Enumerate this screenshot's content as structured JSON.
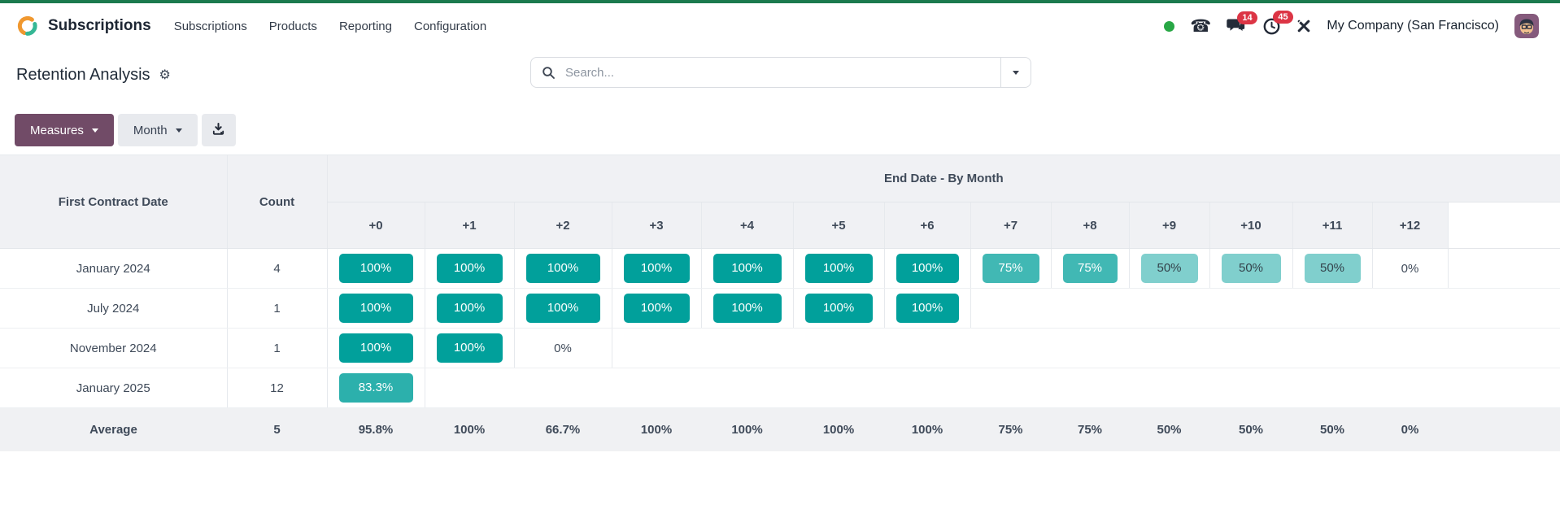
{
  "colors": {
    "accent_teal": "#00a09b",
    "primary_plum": "#714B67",
    "badge_red": "#dc3545",
    "presence_green": "#28a745",
    "top_strip_green": "#1c7a4e"
  },
  "icons": {
    "gear": "⚙",
    "phone": "☎"
  },
  "nav": {
    "brand": "Subscriptions",
    "menu": [
      {
        "label": "Subscriptions"
      },
      {
        "label": "Products"
      },
      {
        "label": "Reporting"
      },
      {
        "label": "Configuration"
      }
    ],
    "messages_badge": "14",
    "activities_badge": "45",
    "company": "My Company (San Francisco)"
  },
  "page": {
    "title": "Retention Analysis"
  },
  "search": {
    "placeholder": "Search...",
    "value": ""
  },
  "toolbar": {
    "measures": "Measures",
    "interval": "Month"
  },
  "table": {
    "row_header": "First Contract Date",
    "count_header": "Count",
    "group_header": "End Date - By Month",
    "periods": [
      "+0",
      "+1",
      "+2",
      "+3",
      "+4",
      "+5",
      "+6",
      "+7",
      "+8",
      "+9",
      "+10",
      "+11",
      "+12"
    ],
    "rows": [
      {
        "label": "January 2024",
        "count": "4",
        "cells": [
          100,
          100,
          100,
          100,
          100,
          100,
          100,
          75,
          75,
          50,
          50,
          50,
          0
        ]
      },
      {
        "label": "July 2024",
        "count": "1",
        "cells": [
          100,
          100,
          100,
          100,
          100,
          100,
          100,
          null,
          null,
          null,
          null,
          null,
          null
        ]
      },
      {
        "label": "November 2024",
        "count": "1",
        "cells": [
          100,
          100,
          0,
          null,
          null,
          null,
          null,
          null,
          null,
          null,
          null,
          null,
          null
        ]
      },
      {
        "label": "January 2025",
        "count": "12",
        "cells": [
          83.3,
          null,
          null,
          null,
          null,
          null,
          null,
          null,
          null,
          null,
          null,
          null,
          null
        ]
      }
    ],
    "average": {
      "label": "Average",
      "count": "5",
      "values": [
        "95.8%",
        "100%",
        "66.7%",
        "100%",
        "100%",
        "100%",
        "100%",
        "75%",
        "75%",
        "50%",
        "50%",
        "50%",
        "0%"
      ]
    }
  }
}
